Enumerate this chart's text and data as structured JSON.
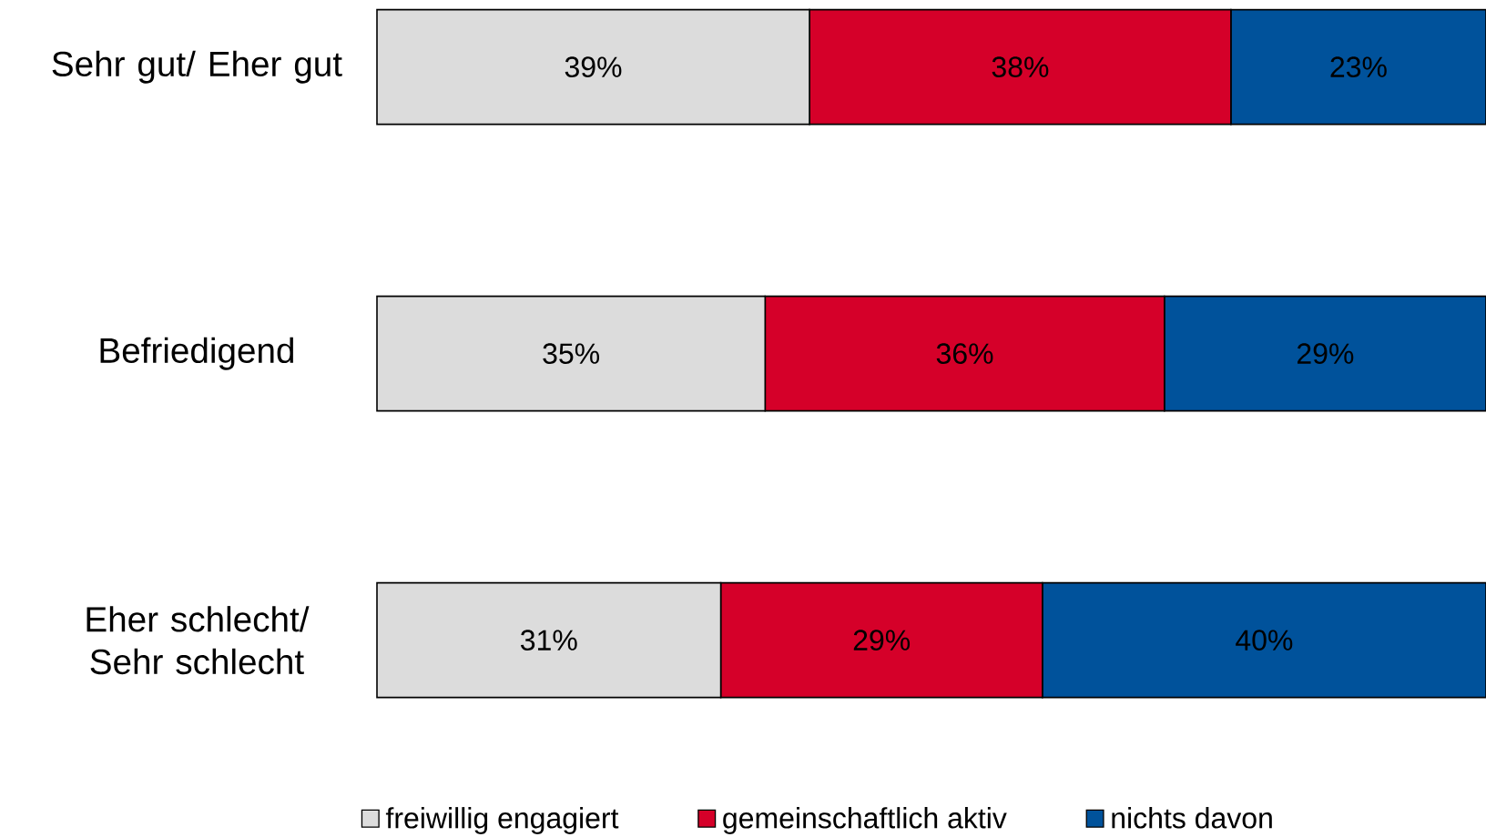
{
  "chart_data": {
    "type": "bar",
    "orientation": "horizontal",
    "stacked": true,
    "categories": [
      "Sehr gut/ Eher gut",
      "Befriedigend",
      "Eher schlecht/ Sehr schlecht"
    ],
    "xlim": [
      0,
      100
    ],
    "tick_labels": "y",
    "legend": "bottom",
    "series": [
      {
        "name": "freiwillig engagiert",
        "color": "#dcdcdc",
        "values": [
          39,
          35,
          31
        ],
        "value_labels": [
          "39%",
          "35%",
          "31%"
        ]
      },
      {
        "name": "gemeinschaftlich aktiv",
        "color": "#d50029",
        "values": [
          38,
          36,
          29
        ],
        "value_labels": [
          "38%",
          "36%",
          "29%"
        ]
      },
      {
        "name": "nichts davon",
        "color": "#00529b",
        "values": [
          23,
          29,
          40
        ],
        "value_labels": [
          "23%",
          "29%",
          "40%"
        ]
      }
    ]
  }
}
